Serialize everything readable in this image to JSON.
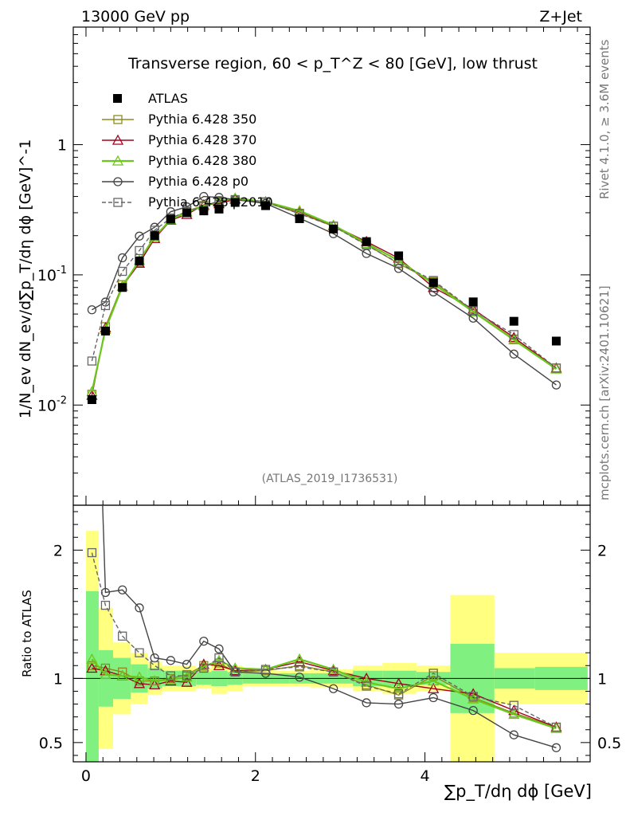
{
  "header": {
    "left": "13000 GeV pp",
    "right": "Z+Jet"
  },
  "side": {
    "rivet": "Rivet 4.1.0, ≥ 3.6M events",
    "mcplots": "mcplots.cern.ch [arXiv:2401.10621]"
  },
  "chart_data": {
    "type": "line",
    "title": "Transverse region, 60 < p_T^Z < 80 [GeV], low thrust",
    "watermark": "(ATLAS_2019_I1736531)",
    "ylabel_main": "1/N_ev dN_ev/d∑p_T/dη dϕ [GeV]^-1",
    "ylabel_ratio": "Ratio to ATLAS",
    "xlabel": "∑p_T/dη dϕ [GeV]",
    "xlim": [
      -0.15,
      5.95
    ],
    "ylim_main": [
      0.0017,
      8
    ],
    "ylim_ratio": [
      0.35,
      2.35
    ],
    "x_ticks": [
      "0",
      "2",
      "4"
    ],
    "y_ticks_main": [
      "10^-2",
      "10^-1",
      "1"
    ],
    "y_ticks_ratio": [
      "0.5",
      "1",
      "2"
    ],
    "x": [
      0.07,
      0.23,
      0.43,
      0.63,
      0.81,
      1.0,
      1.19,
      1.39,
      1.57,
      1.76,
      2.12,
      2.52,
      2.92,
      3.31,
      3.69,
      4.1,
      4.57,
      5.05,
      5.55
    ],
    "bin_edges": [
      0.0,
      0.15,
      0.32,
      0.53,
      0.73,
      0.9,
      1.1,
      1.3,
      1.48,
      1.67,
      1.85,
      2.4,
      2.65,
      3.15,
      3.5,
      3.9,
      4.3,
      4.82,
      5.3,
      5.92
    ],
    "band_inner": [
      0.68,
      0.22,
      0.16,
      0.11,
      0.08,
      0.06,
      0.06,
      0.05,
      0.06,
      0.05,
      0.04,
      0.04,
      0.04,
      0.06,
      0.06,
      0.05,
      0.27,
      0.08,
      0.09
    ],
    "band_outer": [
      1.15,
      0.55,
      0.28,
      0.2,
      0.13,
      0.1,
      0.1,
      0.08,
      0.12,
      0.1,
      0.06,
      0.06,
      0.07,
      0.1,
      0.12,
      0.1,
      0.65,
      0.2,
      0.2
    ],
    "reference": {
      "name": "ATLAS",
      "values": [
        0.011,
        0.037,
        0.08,
        0.128,
        0.2,
        0.268,
        0.3,
        0.31,
        0.32,
        0.36,
        0.34,
        0.27,
        0.225,
        0.18,
        0.14,
        0.087,
        0.062,
        0.044,
        0.031
      ]
    },
    "series": [
      {
        "name": "Pythia 6.428 350",
        "color": "#8b8b1e",
        "marker": "square",
        "dash": "solid",
        "ratio": [
          1.1,
          1.08,
          1.05,
          0.98,
          0.98,
          1.0,
          1.03,
          1.1,
          1.12,
          1.05,
          1.06,
          1.1,
          1.05,
          0.95,
          0.87,
          1.02,
          0.85,
          0.73,
          0.62
        ]
      },
      {
        "name": "Pythia 6.428 370",
        "color": "#a3001b",
        "marker": "triangle",
        "dash": "solid",
        "ratio": [
          1.08,
          1.06,
          1.02,
          0.96,
          0.95,
          0.98,
          0.97,
          1.11,
          1.1,
          1.06,
          1.07,
          1.13,
          1.06,
          1.0,
          0.96,
          0.92,
          0.88,
          0.75,
          0.62
        ]
      },
      {
        "name": "Pythia 6.428 380",
        "color": "#6ac81c",
        "marker": "triangle",
        "dash": "solid",
        "ratio": [
          1.15,
          1.03,
          1.02,
          1.01,
          0.98,
          0.99,
          1.01,
          1.09,
          1.14,
          1.08,
          1.07,
          1.15,
          1.07,
          0.97,
          0.92,
          0.98,
          0.84,
          0.72,
          0.61
        ]
      },
      {
        "name": "Pythia 6.428 p0",
        "color": "#444444",
        "marker": "circle",
        "dash": "solid",
        "ratio": [
          4.9,
          1.67,
          1.69,
          1.55,
          1.16,
          1.14,
          1.11,
          1.29,
          1.23,
          1.05,
          1.04,
          1.01,
          0.92,
          0.81,
          0.8,
          0.85,
          0.75,
          0.56,
          0.46
        ]
      },
      {
        "name": "Pythia 6.428 p2010",
        "color": "#666666",
        "marker": "square",
        "dash": "dashed",
        "ratio": [
          1.98,
          1.57,
          1.33,
          1.2,
          1.1,
          1.02,
          1.02,
          1.08,
          1.16,
          1.05,
          1.07,
          1.09,
          1.05,
          0.94,
          0.88,
          1.04,
          0.86,
          0.79,
          0.62
        ]
      }
    ]
  }
}
